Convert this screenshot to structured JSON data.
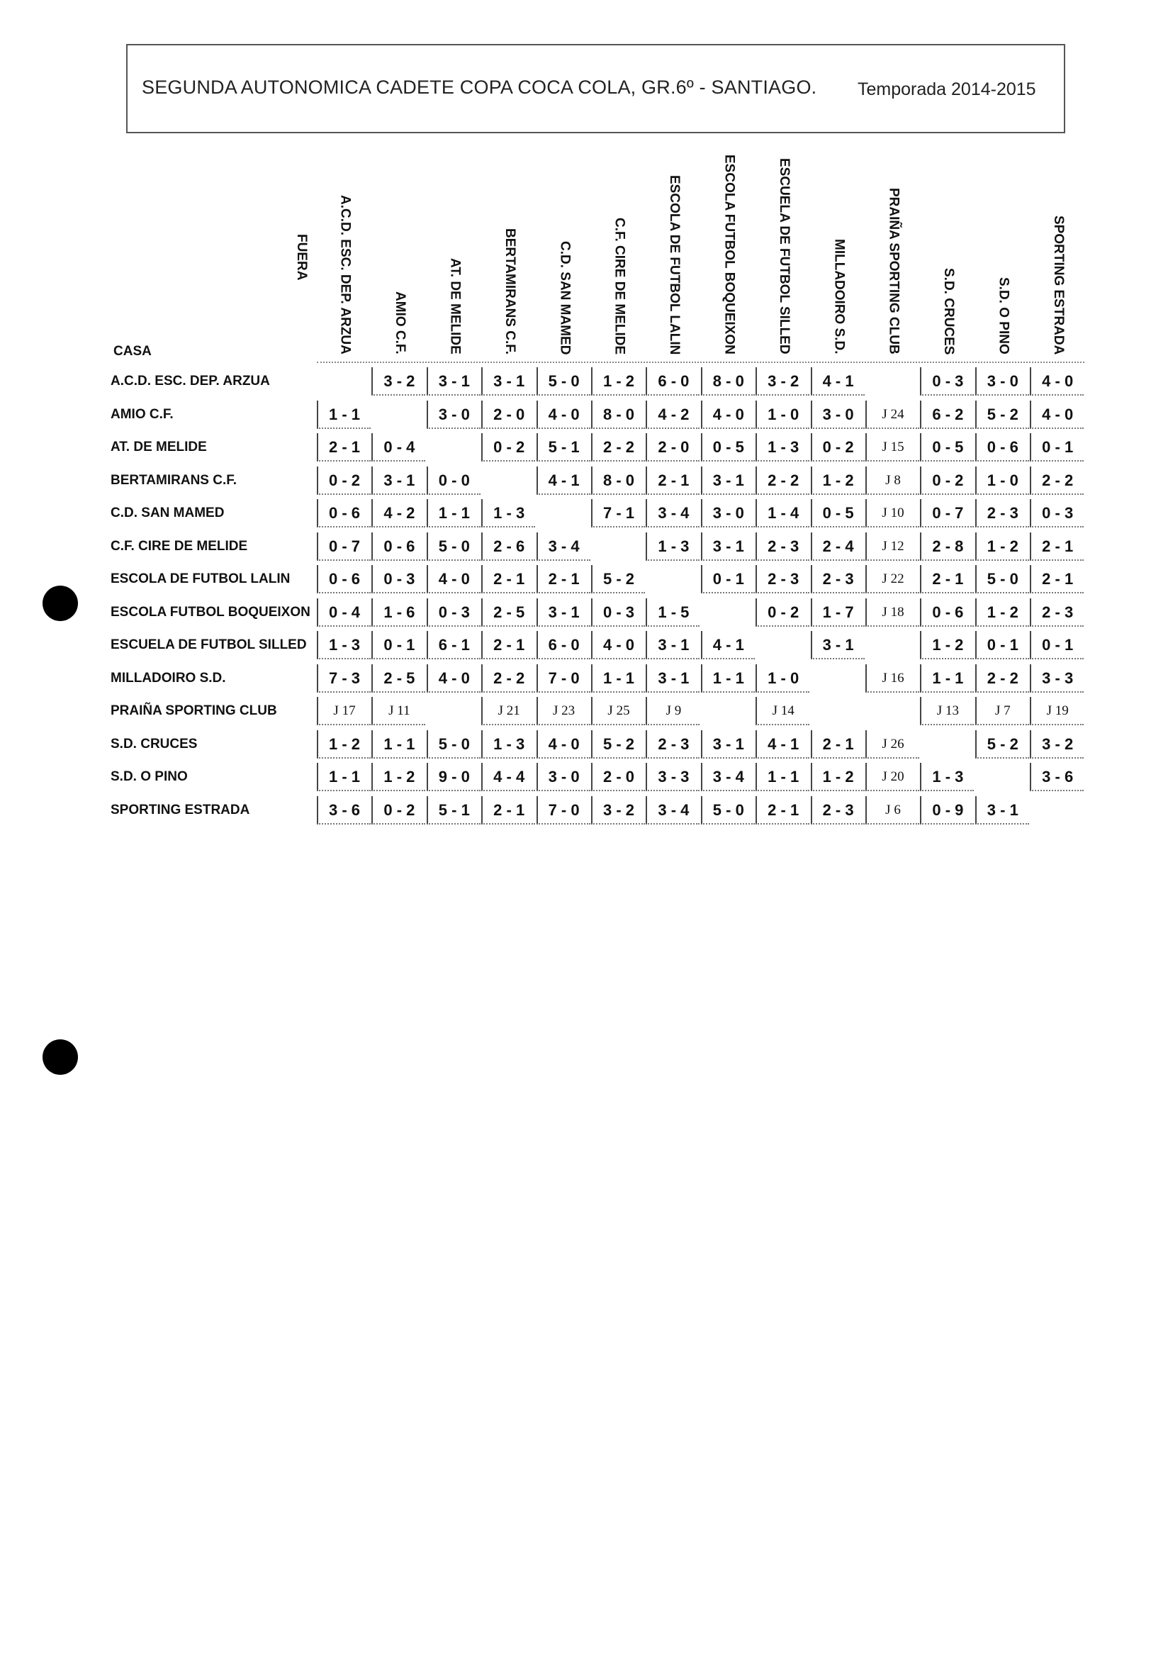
{
  "header": {
    "title": "SEGUNDA AUTONOMICA CADETE COPA COCA COLA,  GR.6º - SANTIAGO.",
    "season": "Temporada 2014-2015"
  },
  "table": {
    "away_label": "FUERA",
    "home_label": "CASA",
    "teams": [
      "A.C.D. ESC. DEP. ARZUA",
      "AMIO C.F.",
      "AT. DE MELIDE",
      "BERTAMIRANS C.F.",
      "C.D. SAN MAMED",
      "C.F. CIRE DE MELIDE",
      "ESCOLA DE FUTBOL LALIN",
      "ESCOLA FUTBOL BOQUEIXON",
      "ESCUELA DE FUTBOL SILLED",
      "MILLADOIRO S.D.",
      "PRAIÑA SPORTING CLUB",
      "S.D. CRUCES",
      "S.D. O PINO",
      "SPORTING ESTRADA"
    ],
    "results": [
      [
        "",
        "3 - 2",
        "3 - 1",
        "3 - 1",
        "5 - 0",
        "1 - 2",
        "6 - 0",
        "8 - 0",
        "3 - 2",
        "4 - 1",
        "",
        "0 - 3",
        "3 - 0",
        "4 - 0"
      ],
      [
        "1 - 1",
        "",
        "3 - 0",
        "2 - 0",
        "4 - 0",
        "8 - 0",
        "4 - 2",
        "4 - 0",
        "1 - 0",
        "3 - 0",
        "J 24",
        "6 - 2",
        "5 - 2",
        "4 - 0"
      ],
      [
        "2 - 1",
        "0 - 4",
        "",
        "0 - 2",
        "5 - 1",
        "2 - 2",
        "2 - 0",
        "0 - 5",
        "1 - 3",
        "0 - 2",
        "J 15",
        "0 - 5",
        "0 - 6",
        "0 - 1"
      ],
      [
        "0 - 2",
        "3 - 1",
        "0 - 0",
        "",
        "4 - 1",
        "8 - 0",
        "2 - 1",
        "3 - 1",
        "2 - 2",
        "1 - 2",
        "J 8",
        "0 - 2",
        "1 - 0",
        "2 - 2"
      ],
      [
        "0 - 6",
        "4 - 2",
        "1 - 1",
        "1 - 3",
        "",
        "7 - 1",
        "3 - 4",
        "3 - 0",
        "1 - 4",
        "0 - 5",
        "J 10",
        "0 - 7",
        "2 - 3",
        "0 - 3"
      ],
      [
        "0 - 7",
        "0 - 6",
        "5 - 0",
        "2 - 6",
        "3 - 4",
        "",
        "1 - 3",
        "3 - 1",
        "2 - 3",
        "2 - 4",
        "J 12",
        "2 - 8",
        "1 - 2",
        "2 - 1"
      ],
      [
        "0 - 6",
        "0 - 3",
        "4 - 0",
        "2 - 1",
        "2 - 1",
        "5 - 2",
        "",
        "0 - 1",
        "2 - 3",
        "2 - 3",
        "J 22",
        "2 - 1",
        "5 - 0",
        "2 - 1"
      ],
      [
        "0 - 4",
        "1 - 6",
        "0 - 3",
        "2 - 5",
        "3 - 1",
        "0 - 3",
        "1 - 5",
        "",
        "0 - 2",
        "1 - 7",
        "J 18",
        "0 - 6",
        "1 - 2",
        "2 - 3"
      ],
      [
        "1 - 3",
        "0 - 1",
        "6 - 1",
        "2 - 1",
        "6 - 0",
        "4 - 0",
        "3 - 1",
        "4 - 1",
        "",
        "3 - 1",
        "",
        "1 - 2",
        "0 - 1",
        "0 - 1"
      ],
      [
        "7 - 3",
        "2 - 5",
        "4 - 0",
        "2 - 2",
        "7 - 0",
        "1 - 1",
        "3 - 1",
        "1 - 1",
        "1 - 0",
        "",
        "J 16",
        "1 - 1",
        "2 - 2",
        "3 - 3"
      ],
      [
        "J 17",
        "J 11",
        "",
        "J 21",
        "J 23",
        "J 25",
        "J 9",
        "",
        "J 14",
        "",
        "",
        "J 13",
        "J 7",
        "J 19"
      ],
      [
        "1 - 2",
        "1 - 1",
        "5 - 0",
        "1 - 3",
        "4 - 0",
        "5 - 2",
        "2 - 3",
        "3 - 1",
        "4 - 1",
        "2 - 1",
        "J 26",
        "",
        "5 - 2",
        "3 - 2"
      ],
      [
        "1 - 1",
        "1 - 2",
        "9 - 0",
        "4 - 4",
        "3 - 0",
        "2 - 0",
        "3 - 3",
        "3 - 4",
        "1 - 1",
        "1 - 2",
        "J 20",
        "1 - 3",
        "",
        "3 - 6"
      ],
      [
        "3 - 6",
        "0 - 2",
        "5 - 1",
        "2 - 1",
        "7 - 0",
        "3 - 2",
        "3 - 4",
        "5 - 0",
        "2 - 1",
        "2 - 3",
        "J 6",
        "0 - 9",
        "3 - 1",
        ""
      ]
    ]
  }
}
